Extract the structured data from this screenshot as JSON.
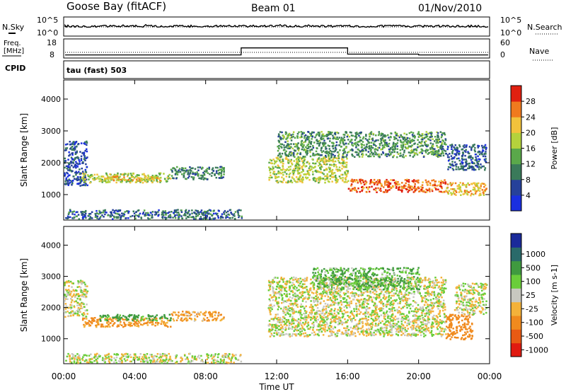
{
  "header": {
    "station": "Goose Bay (fitACF)",
    "beam": "Beam 01",
    "date": "01/Nov/2010"
  },
  "noise_panel": {
    "left_label": "N.Sky",
    "right_label": "N.Search",
    "left_ticks": [
      "10^5",
      "10^0"
    ],
    "right_ticks": [
      "10^5",
      "10^0"
    ]
  },
  "freq_panel": {
    "left_label_1": "Freq.",
    "left_label_2": "[MHz]",
    "right_label": "Nave",
    "left_ticks": [
      "18",
      "8"
    ],
    "right_ticks": [
      "60",
      "0"
    ],
    "cpid_label": "CPID",
    "cpid_value": "tau (fast) 503"
  },
  "axes": {
    "xlabel": "Time UT",
    "x_ticks": [
      "00:00",
      "04:00",
      "08:00",
      "12:00",
      "16:00",
      "20:00",
      "00:00"
    ],
    "ylabel": "Slant Range [km]",
    "y_ticks": [
      "1000",
      "2000",
      "3000",
      "4000"
    ]
  },
  "power_scale": {
    "title": "Power [dB]",
    "ticks": [
      "4",
      "8",
      "12",
      "16",
      "20",
      "24",
      "28"
    ],
    "colors": [
      "#1a2fe0",
      "#26419a",
      "#3a7a5a",
      "#5aa84a",
      "#b4d23c",
      "#f2c23c",
      "#f07a1e",
      "#e02010"
    ]
  },
  "velocity_scale": {
    "title": "Velocity [m s-1]",
    "ticks": [
      "1000",
      "500",
      "100",
      "25",
      "-25",
      "-100",
      "-500",
      "-1000"
    ],
    "colors": [
      "#1a2a9a",
      "#2a6a6a",
      "#3f9a3f",
      "#6acd3a",
      "#c8c8c0",
      "#f4b23a",
      "#f08a1e",
      "#e85a14",
      "#e01a10"
    ]
  },
  "chart_data": [
    {
      "type": "heatmap",
      "title": "Power",
      "xlabel": "Time UT",
      "ylabel": "Slant Range [km]",
      "xlim": [
        0,
        24
      ],
      "ylim": [
        200,
        4600
      ],
      "colorbar_label": "Power [dB]",
      "colorbar_ticks": [
        4,
        8,
        12,
        16,
        20,
        24,
        28
      ],
      "echo_regions": [
        {
          "t_start": 0.0,
          "t_end": 1.3,
          "r_start": 1300,
          "r_end": 2700,
          "power": 6
        },
        {
          "t_start": 1.0,
          "t_end": 6.0,
          "r_start": 1400,
          "r_end": 1700,
          "power": 17
        },
        {
          "t_start": 2.0,
          "t_end": 5.5,
          "r_start": 1450,
          "r_end": 1600,
          "power": 22
        },
        {
          "t_start": 6.0,
          "t_end": 9.0,
          "r_start": 1500,
          "r_end": 1900,
          "power": 10
        },
        {
          "t_start": 0.0,
          "t_end": 10.0,
          "r_start": 250,
          "r_end": 550,
          "power": 8
        },
        {
          "t_start": 11.5,
          "t_end": 16.0,
          "r_start": 1400,
          "r_end": 2200,
          "power": 18
        },
        {
          "t_start": 12.0,
          "t_end": 21.5,
          "r_start": 2200,
          "r_end": 3000,
          "power": 12
        },
        {
          "t_start": 16.0,
          "t_end": 21.5,
          "r_start": 1100,
          "r_end": 1500,
          "power": 27
        },
        {
          "t_start": 21.5,
          "t_end": 23.8,
          "r_start": 1000,
          "r_end": 1400,
          "power": 22
        },
        {
          "t_start": 21.5,
          "t_end": 23.8,
          "r_start": 1800,
          "r_end": 2600,
          "power": 7
        }
      ]
    },
    {
      "type": "heatmap",
      "title": "Velocity",
      "xlabel": "Time UT",
      "ylabel": "Slant Range [km]",
      "xlim": [
        0,
        24
      ],
      "ylim": [
        200,
        4600
      ],
      "colorbar_label": "Velocity [m s-1]",
      "colorbar_ticks": [
        1000,
        500,
        100,
        25,
        -25,
        -100,
        -500,
        -1000
      ],
      "echo_regions": [
        {
          "t_start": 0.0,
          "t_end": 1.3,
          "r_start": 1700,
          "r_end": 2900,
          "velocity": 0
        },
        {
          "t_start": 1.0,
          "t_end": 6.0,
          "r_start": 1400,
          "r_end": 1700,
          "velocity": -150
        },
        {
          "t_start": 2.0,
          "t_end": 6.0,
          "r_start": 1600,
          "r_end": 1800,
          "velocity": 150
        },
        {
          "t_start": 6.0,
          "t_end": 9.0,
          "r_start": 1600,
          "r_end": 1900,
          "velocity": -100
        },
        {
          "t_start": 0.0,
          "t_end": 10.0,
          "r_start": 250,
          "r_end": 550,
          "velocity": 0
        },
        {
          "t_start": 11.5,
          "t_end": 21.5,
          "r_start": 1100,
          "r_end": 3000,
          "velocity": 0
        },
        {
          "t_start": 14.0,
          "t_end": 20.0,
          "r_start": 2600,
          "r_end": 3300,
          "velocity": 100
        },
        {
          "t_start": 21.5,
          "t_end": 23.0,
          "r_start": 1000,
          "r_end": 1800,
          "velocity": -300
        },
        {
          "t_start": 22.0,
          "t_end": 23.8,
          "r_start": 1800,
          "r_end": 2800,
          "velocity": 0
        }
      ]
    }
  ]
}
